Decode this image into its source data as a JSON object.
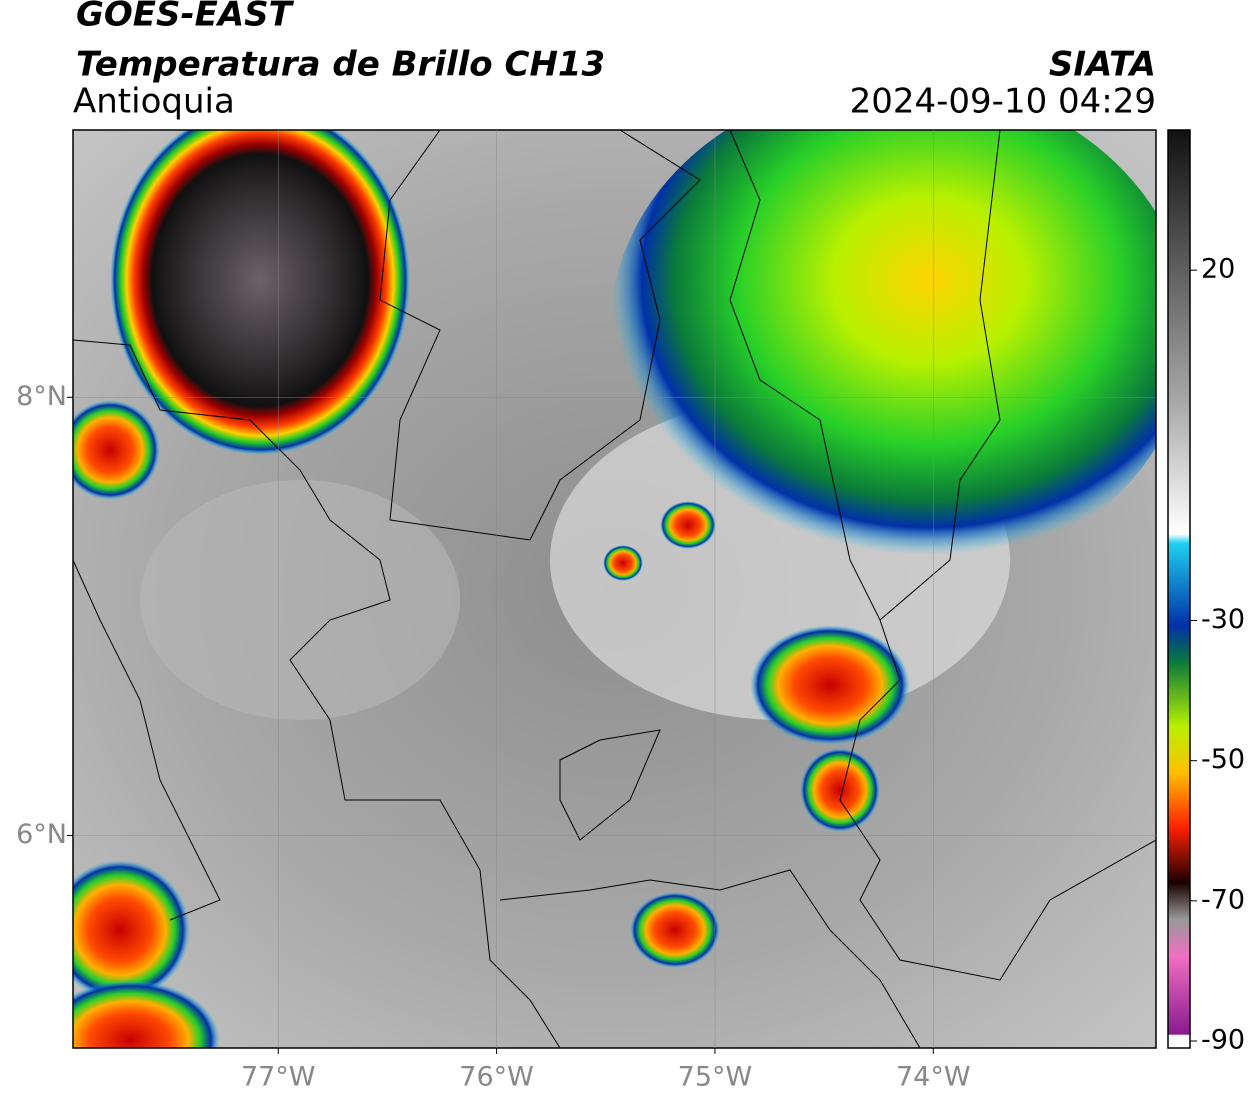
{
  "header": {
    "title": "GOES-EAST",
    "subtitle": "Temperatura de Brillo CH13",
    "region": "Antioquia",
    "source": "SIATA",
    "datetime": "2024-09-10 04:29"
  },
  "map": {
    "xlim": [
      -77.94,
      -72.98
    ],
    "ylim": [
      5.03,
      9.22
    ],
    "xticks": [
      {
        "value": -77,
        "label": "77°W"
      },
      {
        "value": -76,
        "label": "76°W"
      },
      {
        "value": -75,
        "label": "75°W"
      },
      {
        "value": -74,
        "label": "74°W"
      }
    ],
    "yticks": [
      {
        "value": 8,
        "label": "8°N"
      },
      {
        "value": 6,
        "label": "6°N"
      }
    ],
    "grid": true
  },
  "colorbar": {
    "ylim": [
      -91,
      40
    ],
    "yticks": [
      20,
      -30,
      -50,
      -70,
      -90
    ]
  }
}
